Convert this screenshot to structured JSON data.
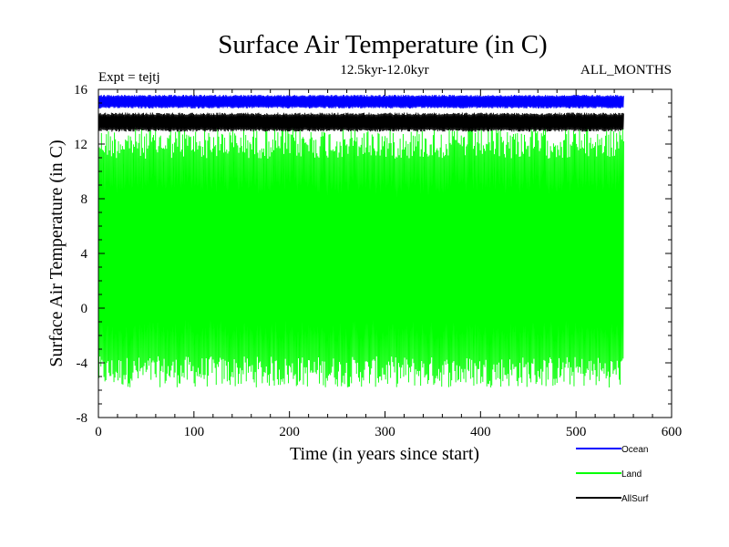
{
  "chart_data": {
    "type": "line",
    "title": "Surface Air Temperature (in C)",
    "subtitle": "12.5kyr-12.0kyr",
    "experiment_label": "Expt = tejtj",
    "period_label": "ALL_MONTHS",
    "xlabel": "Time (in years since start)",
    "ylabel": "Surface Air Temperature (in C)",
    "xlim": [
      0,
      600
    ],
    "ylim": [
      -8,
      16
    ],
    "x_ticks": [
      "0",
      "100",
      "200",
      "300",
      "400",
      "500",
      "600"
    ],
    "y_ticks": [
      "-8",
      "-4",
      "0",
      "4",
      "8",
      "12",
      "16"
    ],
    "x_tick_values": [
      0,
      100,
      200,
      300,
      400,
      500,
      600
    ],
    "y_tick_values": [
      -8,
      -4,
      0,
      4,
      8,
      12,
      16
    ],
    "data_x_range": [
      0,
      550
    ],
    "grid": false,
    "legend_position": "bottom-right",
    "series": [
      {
        "name": "Ocean",
        "color": "#0000ff",
        "band": [
          14.6,
          15.6
        ],
        "note": "monthly values, annual cycle"
      },
      {
        "name": "Land",
        "color": "#00ff00",
        "band": [
          -5.8,
          13.2
        ],
        "note": "monthly values, annual cycle"
      },
      {
        "name": "AllSurf",
        "color": "#000000",
        "band": [
          12.9,
          14.3
        ],
        "note": "monthly values, annual cycle"
      }
    ]
  }
}
